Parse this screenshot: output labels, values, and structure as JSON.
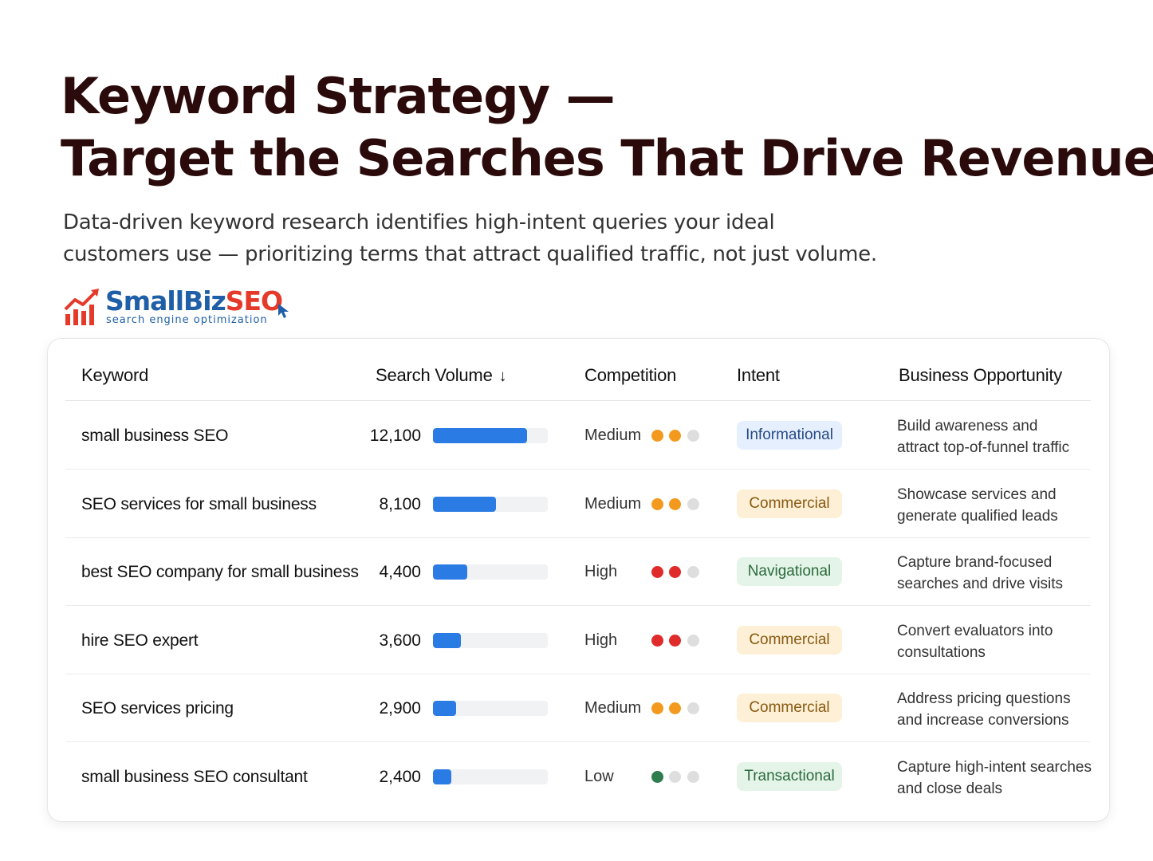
{
  "title": {
    "line1": "Keyword Strategy —",
    "line2": "Target the Searches That Drive Revenue"
  },
  "subtitle": {
    "line1": "Data-driven keyword research identifies high-intent queries your ideal",
    "line2": "customers use — prioritizing terms that attract qualified traffic, not just volume."
  },
  "logo": {
    "brand_part1": "SmallBiz",
    "brand_part2": "SEO",
    "tagline": "search engine optimization",
    "icon": "bar-chart-arrow-icon"
  },
  "colors": {
    "bar": "#2b7be4",
    "dot_medium": "#f39a1e",
    "dot_high": "#e02b2b",
    "dot_low": "#2e7d4f",
    "dot_empty": "#dedede"
  },
  "table": {
    "headers": {
      "keyword": "Keyword",
      "volume": "Search Volume",
      "volume_sort_icon": "↓",
      "competition": "Competition",
      "intent": "Intent",
      "opportunity": "Business Opportunity"
    },
    "max_volume": 14700,
    "rows": [
      {
        "keyword": "small business SEO",
        "volume": "12,100",
        "volume_value": 12100,
        "competition": "Medium",
        "level": 2,
        "dot_color": "#f39a1e",
        "intent": "Informational",
        "intent_type": "info",
        "opportunity1": "Build awareness and",
        "opportunity2": "attract top-of-funnel traffic"
      },
      {
        "keyword": "SEO services for small business",
        "volume": "8,100",
        "volume_value": 8100,
        "competition": "Medium",
        "level": 2,
        "dot_color": "#f39a1e",
        "intent": "Commercial",
        "intent_type": "comm",
        "opportunity1": "Showcase services and",
        "opportunity2": "generate qualified leads"
      },
      {
        "keyword": "best SEO company for small business",
        "volume": "4,400",
        "volume_value": 4400,
        "competition": "High",
        "level": 2,
        "dot_color": "#e02b2b",
        "intent": "Navigational",
        "intent_type": "nav",
        "opportunity1": "Capture brand-focused",
        "opportunity2": "searches and drive visits"
      },
      {
        "keyword": "hire SEO expert",
        "volume": "3,600",
        "volume_value": 3600,
        "competition": "High",
        "level": 2,
        "dot_color": "#e02b2b",
        "intent": "Commercial",
        "intent_type": "comm",
        "opportunity1": "Convert evaluators into",
        "opportunity2": "consultations"
      },
      {
        "keyword": "SEO services pricing",
        "volume": "2,900",
        "volume_value": 2900,
        "competition": "Medium",
        "level": 2,
        "dot_color": "#f39a1e",
        "intent": "Commercial",
        "intent_type": "comm",
        "opportunity1": "Address pricing questions",
        "opportunity2": "and increase conversions"
      },
      {
        "keyword": "small business SEO consultant",
        "volume": "2,400",
        "volume_value": 2400,
        "competition": "Low",
        "level": 1,
        "dot_color": "#2e7d4f",
        "intent": "Transactional",
        "intent_type": "trans",
        "opportunity1": "Capture high-intent searches",
        "opportunity2": "and close deals"
      }
    ]
  }
}
